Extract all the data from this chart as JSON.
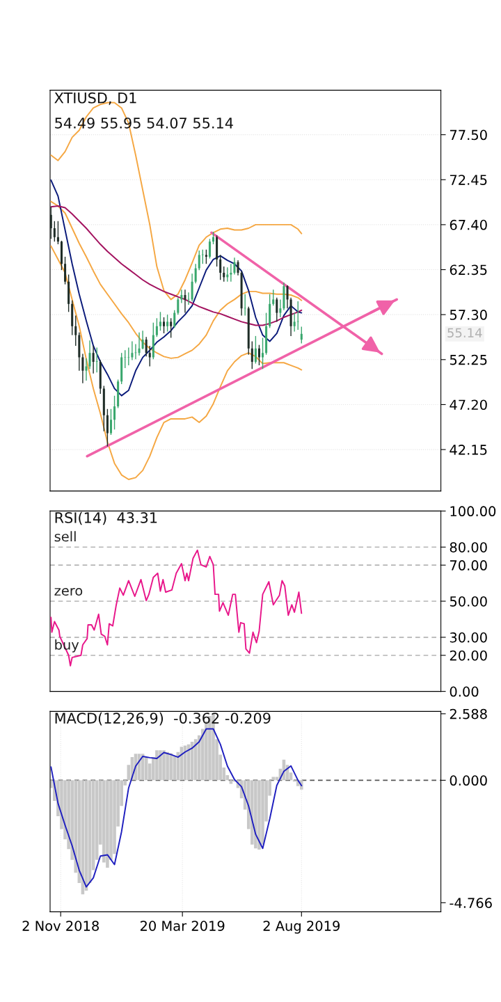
{
  "chart_data": [
    {
      "type": "candlestick",
      "title": "XTIUSD, D1",
      "subtitle": "54.49 55.95 54.07 55.14",
      "x": [
        "2018-10-22",
        "2018-10-26",
        "2018-10-30",
        "2018-11-03",
        "2018-11-07",
        "2018-11-11",
        "2018-11-15",
        "2018-11-19",
        "2018-11-23",
        "2018-11-27",
        "2018-12-01",
        "2018-12-05",
        "2018-12-09",
        "2018-12-13",
        "2018-12-17",
        "2018-12-21",
        "2018-12-25",
        "2018-12-29",
        "2019-01-02",
        "2019-01-06",
        "2019-01-10",
        "2019-01-14",
        "2019-01-18",
        "2019-01-22",
        "2019-01-26",
        "2019-01-30",
        "2019-02-03",
        "2019-02-07",
        "2019-02-11",
        "2019-02-15",
        "2019-02-19",
        "2019-02-23",
        "2019-02-27",
        "2019-03-03",
        "2019-03-07",
        "2019-03-11",
        "2019-03-15",
        "2019-03-19",
        "2019-03-23",
        "2019-03-27",
        "2019-03-31",
        "2019-04-04",
        "2019-04-08",
        "2019-04-12",
        "2019-04-16",
        "2019-04-20",
        "2019-04-24",
        "2019-04-28",
        "2019-05-02",
        "2019-05-06",
        "2019-05-10",
        "2019-05-14",
        "2019-05-18",
        "2019-05-22",
        "2019-05-26",
        "2019-05-30",
        "2019-06-03",
        "2019-06-07",
        "2019-06-11",
        "2019-06-15",
        "2019-06-19",
        "2019-06-23",
        "2019-06-27",
        "2019-07-01",
        "2019-07-05",
        "2019-07-09",
        "2019-07-13",
        "2019-07-17",
        "2019-07-21",
        "2019-07-25",
        "2019-07-29",
        "2019-08-02"
      ],
      "ohlc": [
        [
          68.5,
          69.4,
          65.8,
          67.0
        ],
        [
          67.0,
          67.8,
          65.5,
          66.0
        ],
        [
          66.0,
          67.8,
          65.2,
          65.5
        ],
        [
          65.5,
          65.6,
          62.3,
          63.0
        ],
        [
          63.0,
          63.8,
          60.7,
          61.0
        ],
        [
          61.0,
          61.8,
          57.6,
          58.5
        ],
        [
          58.5,
          58.9,
          55.0,
          56.0
        ],
        [
          56.0,
          57.2,
          53.8,
          55.0
        ],
        [
          55.0,
          55.3,
          51.0,
          52.5
        ],
        [
          52.5,
          52.9,
          49.6,
          51.0
        ],
        [
          51.0,
          52.4,
          49.9,
          51.5
        ],
        [
          51.5,
          54.4,
          51.2,
          53.0
        ],
        [
          53.0,
          53.8,
          50.7,
          52.0
        ],
        [
          52.0,
          53.6,
          50.8,
          52.0
        ],
        [
          52.0,
          52.2,
          48.4,
          49.0
        ],
        [
          49.0,
          49.3,
          44.2,
          46.0
        ],
        [
          46.0,
          46.7,
          42.5,
          44.0
        ],
        [
          44.0,
          46.7,
          43.8,
          45.5
        ],
        [
          45.5,
          48.2,
          44.4,
          47.0
        ],
        [
          47.0,
          50.0,
          46.8,
          49.8
        ],
        [
          49.8,
          53.0,
          49.5,
          52.5
        ],
        [
          52.5,
          53.3,
          51.3,
          52.5
        ],
        [
          52.5,
          53.6,
          51.6,
          52.5
        ],
        [
          52.5,
          54.3,
          52.2,
          53.0
        ],
        [
          53.0,
          54.0,
          52.3,
          53.0
        ],
        [
          53.0,
          55.3,
          52.7,
          53.5
        ],
        [
          53.5,
          55.5,
          53.4,
          54.5
        ],
        [
          54.5,
          54.8,
          52.6,
          53.0
        ],
        [
          53.0,
          53.8,
          51.5,
          52.5
        ],
        [
          52.5,
          56.4,
          52.3,
          55.0
        ],
        [
          55.0,
          56.9,
          54.8,
          56.0
        ],
        [
          56.0,
          57.6,
          55.5,
          56.5
        ],
        [
          56.5,
          57.0,
          55.2,
          56.0
        ],
        [
          56.0,
          57.3,
          55.4,
          56.5
        ],
        [
          56.5,
          56.9,
          54.7,
          56.0
        ],
        [
          56.0,
          57.8,
          55.8,
          57.5
        ],
        [
          57.5,
          59.2,
          57.3,
          59.0
        ],
        [
          59.0,
          60.1,
          58.6,
          59.5
        ],
        [
          59.5,
          60.1,
          57.5,
          59.0
        ],
        [
          59.0,
          59.8,
          58.4,
          59.0
        ],
        [
          59.0,
          61.9,
          58.8,
          61.0
        ],
        [
          61.0,
          63.0,
          60.8,
          62.5
        ],
        [
          62.5,
          64.5,
          62.3,
          64.0
        ],
        [
          64.0,
          64.6,
          63.0,
          64.0
        ],
        [
          64.0,
          64.6,
          63.0,
          63.8
        ],
        [
          63.8,
          65.8,
          63.6,
          65.5
        ],
        [
          65.5,
          66.6,
          65.2,
          66.0
        ],
        [
          66.0,
          66.2,
          62.7,
          63.5
        ],
        [
          63.5,
          64.0,
          61.2,
          62.0
        ],
        [
          62.0,
          62.7,
          61.0,
          61.5
        ],
        [
          61.5,
          62.6,
          61.0,
          61.8
        ],
        [
          61.8,
          63.0,
          61.0,
          62.0
        ],
        [
          62.0,
          63.7,
          61.8,
          63.2
        ],
        [
          63.2,
          63.4,
          61.7,
          62.0
        ],
        [
          62.0,
          62.2,
          57.2,
          58.0
        ],
        [
          58.0,
          59.6,
          57.2,
          58.0
        ],
        [
          58.0,
          58.2,
          52.8,
          53.5
        ],
        [
          53.5,
          54.3,
          51.2,
          52.0
        ],
        [
          52.0,
          54.9,
          51.8,
          53.5
        ],
        [
          53.5,
          53.9,
          51.6,
          52.5
        ],
        [
          52.5,
          54.7,
          51.2,
          53.0
        ],
        [
          53.0,
          57.5,
          52.8,
          56.0
        ],
        [
          56.0,
          59.6,
          55.8,
          58.5
        ],
        [
          58.5,
          60.1,
          58.3,
          59.0
        ],
        [
          59.0,
          59.2,
          56.5,
          57.5
        ],
        [
          57.5,
          59.0,
          57.0,
          58.0
        ],
        [
          58.0,
          60.9,
          57.8,
          60.5
        ],
        [
          60.5,
          60.6,
          58.0,
          59.0
        ],
        [
          59.0,
          59.2,
          54.9,
          56.0
        ],
        [
          56.0,
          57.5,
          55.4,
          56.5
        ],
        [
          56.5,
          58.8,
          55.6,
          56.5
        ],
        [
          54.49,
          55.95,
          54.07,
          55.14
        ]
      ],
      "colors": [
        "#1f2d27",
        "#1f2d27",
        "#1f2d27",
        "#1f2d27",
        "#1f2d27",
        "#1f2d27",
        "#1f2d27",
        "#1f2d27",
        "#1f2d27",
        "#1f2d27",
        "#3aa76d",
        "#3aa76d",
        "#1f2d27",
        "#3aa76d",
        "#1f2d27",
        "#1f2d27",
        "#1f2d27",
        "#3aa76d",
        "#3aa76d",
        "#3aa76d",
        "#3aa76d",
        "#3aa76d",
        "#3aa76d",
        "#3aa76d",
        "#3aa76d",
        "#3aa76d",
        "#3aa76d",
        "#1f2d27",
        "#1f2d27",
        "#3aa76d",
        "#3aa76d",
        "#3aa76d",
        "#1f2d27",
        "#3aa76d",
        "#1f2d27",
        "#3aa76d",
        "#3aa76d",
        "#3aa76d",
        "#1f2d27",
        "#3aa76d",
        "#3aa76d",
        "#3aa76d",
        "#3aa76d",
        "#3aa76d",
        "#1f2d27",
        "#3aa76d",
        "#3aa76d",
        "#1f2d27",
        "#1f2d27",
        "#1f2d27",
        "#3aa76d",
        "#3aa76d",
        "#3aa76d",
        "#1f2d27",
        "#1f2d27",
        "#3aa76d",
        "#1f2d27",
        "#1f2d27",
        "#3aa76d",
        "#1f2d27",
        "#3aa76d",
        "#3aa76d",
        "#3aa76d",
        "#3aa76d",
        "#1f2d27",
        "#3aa76d",
        "#3aa76d",
        "#1f2d27",
        "#1f2d27",
        "#3aa76d",
        "#3aa76d",
        "#3aa76d"
      ],
      "series": [
        {
          "type": "line",
          "color": "#f5a742",
          "x": [
            "2018-10-22",
            "2018-10-30",
            "2018-11-07",
            "2018-11-15",
            "2018-11-23",
            "2018-12-01",
            "2018-12-09",
            "2018-12-17",
            "2018-12-25",
            "2019-01-02",
            "2019-01-10",
            "2019-01-18",
            "2019-01-26",
            "2019-02-03",
            "2019-02-11",
            "2019-02-19",
            "2019-02-27",
            "2019-03-07",
            "2019-03-15",
            "2019-03-23",
            "2019-03-31",
            "2019-04-08",
            "2019-04-16",
            "2019-04-24",
            "2019-05-02",
            "2019-05-10",
            "2019-05-18",
            "2019-05-26",
            "2019-06-03",
            "2019-06-11",
            "2019-06-19",
            "2019-06-27",
            "2019-07-05",
            "2019-07-13",
            "2019-07-21",
            "2019-07-29",
            "2019-08-02"
          ],
          "values": [
            75.2,
            74.6,
            75.6,
            77.2,
            78.0,
            79.5,
            80.5,
            80.9,
            81.1,
            81.1,
            80.5,
            78.8,
            75.2,
            71.3,
            67.4,
            62.7,
            60.0,
            59.0,
            59.6,
            61.2,
            63.1,
            65.1,
            66.0,
            66.5,
            66.9,
            67.0,
            66.8,
            66.8,
            67.0,
            67.4,
            67.4,
            67.4,
            67.4,
            67.4,
            67.4,
            66.9,
            66.4
          ]
        },
        {
          "type": "line",
          "color": "#f5a742",
          "x": [
            "2018-10-22",
            "2018-10-30",
            "2018-11-07",
            "2018-11-15",
            "2018-11-23",
            "2018-12-01",
            "2018-12-09",
            "2018-12-17",
            "2018-12-25",
            "2019-01-02",
            "2019-01-10",
            "2019-01-18",
            "2019-01-26",
            "2019-02-03",
            "2019-02-11",
            "2019-02-19",
            "2019-02-27",
            "2019-03-07",
            "2019-03-15",
            "2019-03-23",
            "2019-03-31",
            "2019-04-08",
            "2019-04-16",
            "2019-04-24",
            "2019-05-02",
            "2019-05-10",
            "2019-05-18",
            "2019-05-26",
            "2019-06-03",
            "2019-06-11",
            "2019-06-19",
            "2019-06-27",
            "2019-07-05",
            "2019-07-13",
            "2019-07-21",
            "2019-07-29",
            "2019-08-02"
          ],
          "values": [
            70.0,
            69.5,
            68.7,
            67.0,
            65.3,
            63.8,
            62.2,
            60.7,
            59.6,
            58.5,
            57.4,
            56.4,
            55.2,
            54.2,
            53.5,
            53.0,
            52.6,
            52.4,
            52.5,
            52.9,
            53.3,
            54.0,
            55.0,
            56.6,
            57.8,
            58.5,
            59.0,
            59.6,
            59.9,
            59.9,
            59.7,
            59.7,
            59.6,
            59.6,
            59.5,
            59.2,
            58.9
          ]
        },
        {
          "type": "line",
          "color": "#f5a742",
          "x": [
            "2018-10-22",
            "2018-10-30",
            "2018-11-07",
            "2018-11-15",
            "2018-11-23",
            "2018-12-01",
            "2018-12-09",
            "2018-12-17",
            "2018-12-25",
            "2019-01-02",
            "2019-01-10",
            "2019-01-18",
            "2019-01-26",
            "2019-02-03",
            "2019-02-11",
            "2019-02-19",
            "2019-02-27",
            "2019-03-07",
            "2019-03-15",
            "2019-03-23",
            "2019-03-31",
            "2019-04-08",
            "2019-04-16",
            "2019-04-24",
            "2019-05-02",
            "2019-05-10",
            "2019-05-18",
            "2019-05-26",
            "2019-06-03",
            "2019-06-11",
            "2019-06-19",
            "2019-06-27",
            "2019-07-05",
            "2019-07-13",
            "2019-07-21",
            "2019-07-29",
            "2019-08-02"
          ],
          "values": [
            65.0,
            63.5,
            62.0,
            59.0,
            56.0,
            52.3,
            49.0,
            46.2,
            43.0,
            40.6,
            39.3,
            38.8,
            39.0,
            39.8,
            41.4,
            43.5,
            45.2,
            45.6,
            45.6,
            45.6,
            45.8,
            45.2,
            45.9,
            47.3,
            49.2,
            51.0,
            52.0,
            52.7,
            53.0,
            52.6,
            51.8,
            51.9,
            51.9,
            51.9,
            51.6,
            51.3,
            51.1
          ]
        },
        {
          "type": "line",
          "color": "#0a1a7a",
          "x": [
            "2018-10-22",
            "2018-10-30",
            "2018-11-07",
            "2018-11-15",
            "2018-11-23",
            "2018-12-01",
            "2018-12-09",
            "2018-12-17",
            "2018-12-25",
            "2019-01-02",
            "2019-01-10",
            "2019-01-18",
            "2019-01-26",
            "2019-02-03",
            "2019-02-11",
            "2019-02-19",
            "2019-02-27",
            "2019-03-07",
            "2019-03-15",
            "2019-03-23",
            "2019-03-31",
            "2019-04-08",
            "2019-04-16",
            "2019-04-24",
            "2019-05-02",
            "2019-05-10",
            "2019-05-18",
            "2019-05-26",
            "2019-06-03",
            "2019-06-11",
            "2019-06-19",
            "2019-06-27",
            "2019-07-05",
            "2019-07-13",
            "2019-07-21",
            "2019-07-29",
            "2019-08-02"
          ],
          "values": [
            72.4,
            70.6,
            66.8,
            63.0,
            59.6,
            56.6,
            53.8,
            52.0,
            50.6,
            49.0,
            48.2,
            48.8,
            51.0,
            52.5,
            53.3,
            54.2,
            54.8,
            55.5,
            56.5,
            57.3,
            58.3,
            60.3,
            62.3,
            63.5,
            63.9,
            63.4,
            63.0,
            62.2,
            60.0,
            57.0,
            55.0,
            54.3,
            55.2,
            57.2,
            58.3,
            57.6,
            57.5
          ]
        },
        {
          "type": "line",
          "color": "#a3125f",
          "x": [
            "2018-10-22",
            "2018-10-30",
            "2018-11-07",
            "2018-11-15",
            "2018-11-23",
            "2018-12-01",
            "2018-12-09",
            "2018-12-17",
            "2018-12-25",
            "2019-01-02",
            "2019-01-10",
            "2019-01-18",
            "2019-01-26",
            "2019-02-03",
            "2019-02-11",
            "2019-02-19",
            "2019-02-27",
            "2019-03-07",
            "2019-03-15",
            "2019-03-23",
            "2019-03-31",
            "2019-04-08",
            "2019-04-16",
            "2019-04-24",
            "2019-05-02",
            "2019-05-10",
            "2019-05-18",
            "2019-05-26",
            "2019-06-03",
            "2019-06-11",
            "2019-06-19",
            "2019-06-27",
            "2019-07-05",
            "2019-07-13",
            "2019-07-21",
            "2019-07-29",
            "2019-08-02"
          ],
          "values": [
            69.4,
            69.5,
            69.3,
            68.6,
            67.8,
            67.0,
            66.1,
            65.2,
            64.4,
            63.7,
            63.0,
            62.4,
            61.8,
            61.2,
            60.7,
            60.3,
            59.9,
            59.6,
            59.3,
            59.0,
            58.6,
            58.2,
            57.9,
            57.6,
            57.4,
            57.1,
            56.8,
            56.5,
            56.3,
            56.1,
            56.1,
            56.3,
            56.6,
            57.0,
            57.3,
            57.6,
            57.8
          ]
        },
        {
          "type": "line",
          "color": "#f062a8",
          "x": [
            "2018-12-02",
            "2019-11-18"
          ],
          "values": [
            41.4,
            59.0
          ]
        },
        {
          "type": "line",
          "color": "#f062a8",
          "x": [
            "2019-04-22",
            "2019-11-01"
          ],
          "values": [
            66.5,
            52.9
          ]
        }
      ],
      "annotations": [
        "55.14"
      ],
      "xlim": [
        "2018-10-21",
        "2020-01-07"
      ],
      "ylim": [
        37.5,
        82.5
      ],
      "yticks": [
        {
          "value": 42.15,
          "label": "42.15"
        },
        {
          "value": 47.2,
          "label": "47.20"
        },
        {
          "value": 52.25,
          "label": "52.25"
        },
        {
          "value": 57.3,
          "label": "57.30"
        },
        {
          "value": 62.35,
          "label": "62.35"
        },
        {
          "value": 67.4,
          "label": "67.40"
        },
        {
          "value": 72.45,
          "label": "72.45"
        },
        {
          "value": 77.5,
          "label": "77.50"
        }
      ],
      "tick_labels": "y",
      "grid": true
    },
    {
      "type": "line",
      "title": "RSI(14)  43.31",
      "series": [
        {
          "color": "#e8168a",
          "x": [
            "2018-10-22",
            "2018-10-23",
            "2018-10-26",
            "2018-10-31",
            "2018-11-01",
            "2018-11-11",
            "2018-11-13",
            "2018-11-15",
            "2018-11-25",
            "2018-11-27",
            "2018-12-02",
            "2018-12-03",
            "2018-12-07",
            "2018-12-10",
            "2018-12-15",
            "2018-12-18",
            "2018-12-22",
            "2018-12-25",
            "2018-12-27",
            "2018-12-31",
            "2019-01-04",
            "2019-01-08",
            "2019-01-12",
            "2019-01-18",
            "2019-01-25",
            "2019-02-01",
            "2019-02-07",
            "2019-02-10",
            "2019-02-15",
            "2019-02-20",
            "2019-02-23",
            "2019-02-26",
            "2019-03-01",
            "2019-03-08",
            "2019-03-13",
            "2019-03-19",
            "2019-03-23",
            "2019-03-25",
            "2019-03-27",
            "2019-04-01",
            "2019-04-06",
            "2019-04-10",
            "2019-04-16",
            "2019-04-20",
            "2019-04-24",
            "2019-04-26",
            "2019-04-30",
            "2019-05-01",
            "2019-05-05",
            "2019-05-08",
            "2019-05-11",
            "2019-05-16",
            "2019-05-19",
            "2019-05-23",
            "2019-05-25",
            "2019-05-29",
            "2019-05-31",
            "2019-06-04",
            "2019-06-08",
            "2019-06-12",
            "2019-06-15",
            "2019-06-19",
            "2019-06-26",
            "2019-07-01",
            "2019-07-04",
            "2019-07-08",
            "2019-07-11",
            "2019-07-14",
            "2019-07-18",
            "2019-07-22",
            "2019-07-25",
            "2019-07-30",
            "2019-08-02"
          ],
          "values": [
            41.0,
            32.8,
            38.7,
            34.0,
            30.5,
            20.0,
            14.2,
            18.8,
            20.0,
            25.8,
            29.3,
            36.9,
            36.9,
            34.0,
            42.8,
            31.7,
            30.5,
            25.8,
            37.5,
            36.3,
            48.0,
            57.3,
            53.3,
            61.4,
            52.7,
            62.0,
            50.3,
            53.8,
            63.2,
            65.5,
            55.6,
            62.0,
            55.0,
            56.2,
            65.5,
            70.8,
            61.4,
            65.5,
            61.4,
            73.7,
            78.3,
            70.2,
            69.0,
            74.8,
            70.2,
            53.8,
            53.8,
            44.5,
            49.2,
            45.7,
            42.2,
            53.8,
            53.8,
            32.8,
            38.1,
            37.5,
            23.5,
            21.2,
            32.8,
            27.0,
            33.4,
            53.8,
            60.8,
            48.0,
            50.3,
            53.3,
            61.4,
            58.5,
            42.2,
            48.0,
            43.9,
            55.0,
            43.31
          ]
        }
      ],
      "ref_lines": [
        {
          "axis": "y",
          "value": 80,
          "label": "sell",
          "color": "#b4b4b4",
          "line_style": "dashed"
        },
        {
          "axis": "y",
          "value": 70,
          "color": "#b4b4b4",
          "line_style": "dashed"
        },
        {
          "axis": "y",
          "value": 50,
          "label": "zero",
          "color": "#b4b4b4",
          "line_style": "dashed"
        },
        {
          "axis": "y",
          "value": 30,
          "color": "#b4b4b4",
          "line_style": "dashed"
        },
        {
          "axis": "y",
          "value": 20,
          "label": "buy",
          "color": "#b4b4b4",
          "line_style": "dashed"
        }
      ],
      "xlim": [
        "2018-10-21",
        "2020-01-07"
      ],
      "ylim": [
        0,
        100
      ],
      "yticks": [
        {
          "value": 0,
          "label": "0.00"
        },
        {
          "value": 20,
          "label": "20.00"
        },
        {
          "value": 30,
          "label": "30.00"
        },
        {
          "value": 50,
          "label": "50.00"
        },
        {
          "value": 70,
          "label": "70.00"
        },
        {
          "value": 80,
          "label": "80.00"
        },
        {
          "value": 100,
          "label": "100.00"
        }
      ],
      "tick_labels": "y"
    },
    {
      "type": "bar",
      "title": "MACD(12,26,9)  -0.362 -0.209",
      "x": [
        "2018-10-22",
        "2018-10-26",
        "2018-10-30",
        "2018-11-03",
        "2018-11-07",
        "2018-11-11",
        "2018-11-15",
        "2018-11-19",
        "2018-11-23",
        "2018-11-27",
        "2018-12-01",
        "2018-12-05",
        "2018-12-09",
        "2018-12-13",
        "2018-12-17",
        "2018-12-21",
        "2018-12-25",
        "2018-12-29",
        "2019-01-02",
        "2019-01-06",
        "2019-01-10",
        "2019-01-14",
        "2019-01-18",
        "2019-01-22",
        "2019-01-26",
        "2019-01-30",
        "2019-02-03",
        "2019-02-07",
        "2019-02-11",
        "2019-02-15",
        "2019-02-19",
        "2019-02-23",
        "2019-02-27",
        "2019-03-03",
        "2019-03-07",
        "2019-03-11",
        "2019-03-15",
        "2019-03-19",
        "2019-03-23",
        "2019-03-27",
        "2019-03-31",
        "2019-04-04",
        "2019-04-08",
        "2019-04-12",
        "2019-04-16",
        "2019-04-20",
        "2019-04-24",
        "2019-04-28",
        "2019-05-02",
        "2019-05-06",
        "2019-05-10",
        "2019-05-14",
        "2019-05-18",
        "2019-05-22",
        "2019-05-26",
        "2019-05-30",
        "2019-06-03",
        "2019-06-07",
        "2019-06-11",
        "2019-06-15",
        "2019-06-19",
        "2019-06-23",
        "2019-06-27",
        "2019-07-01",
        "2019-07-05",
        "2019-07-09",
        "2019-07-13",
        "2019-07-17",
        "2019-07-21",
        "2019-07-25",
        "2019-07-29",
        "2019-08-02"
      ],
      "series": [
        {
          "color": "#c8c8c8",
          "values": [
            -0.3,
            -0.8,
            -1.4,
            -1.9,
            -2.3,
            -2.68,
            -3.1,
            -3.6,
            -4.0,
            -4.44,
            -4.3,
            -4.0,
            -3.5,
            -3.1,
            -2.5,
            -3.2,
            -3.4,
            -3.1,
            -2.87,
            -1.8,
            -1.0,
            -0.2,
            0.6,
            0.9,
            1.03,
            1.03,
            1.03,
            0.9,
            0.65,
            0.9,
            1.17,
            1.17,
            1.17,
            1.1,
            1.05,
            0.95,
            1.1,
            1.3,
            1.35,
            1.4,
            1.5,
            1.6,
            1.75,
            2.0,
            2.3,
            2.5,
            2.588,
            1.6,
            1.0,
            0.5,
            0.2,
            -0.14,
            -0.05,
            -0.3,
            -0.7,
            -1.14,
            -1.9,
            -2.5,
            -2.65,
            -2.7,
            -2.5,
            -1.6,
            -0.6,
            0.13,
            0.13,
            0.45,
            0.8,
            0.6,
            0.3,
            -0.05,
            -0.23,
            -0.362
          ]
        },
        {
          "type": "line",
          "color": "#1f1fbf",
          "x": [
            "2018-10-22",
            "2018-10-30",
            "2018-11-07",
            "2018-11-15",
            "2018-11-23",
            "2018-12-01",
            "2018-12-09",
            "2018-12-17",
            "2018-12-25",
            "2019-01-02",
            "2019-01-10",
            "2019-01-18",
            "2019-01-26",
            "2019-02-03",
            "2019-02-11",
            "2019-02-19",
            "2019-02-27",
            "2019-03-07",
            "2019-03-15",
            "2019-03-23",
            "2019-03-31",
            "2019-04-08",
            "2019-04-16",
            "2019-04-24",
            "2019-05-02",
            "2019-05-10",
            "2019-05-18",
            "2019-05-26",
            "2019-06-03",
            "2019-06-11",
            "2019-06-19",
            "2019-06-27",
            "2019-07-05",
            "2019-07-13",
            "2019-07-21",
            "2019-07-29",
            "2019-08-02"
          ],
          "values": [
            0.52,
            -0.9,
            -1.75,
            -2.55,
            -3.5,
            -4.15,
            -3.8,
            -2.95,
            -2.9,
            -3.28,
            -2.0,
            -0.3,
            0.55,
            0.93,
            0.88,
            0.85,
            1.08,
            1.0,
            0.9,
            1.1,
            1.25,
            1.5,
            2.0,
            2.0,
            1.4,
            0.55,
            0.03,
            -0.25,
            -1.0,
            -2.1,
            -2.65,
            -1.5,
            -0.2,
            0.35,
            0.56,
            0.0,
            -0.209
          ]
        }
      ],
      "ref_lines": [
        {
          "axis": "y",
          "value": 0,
          "color": "#555555",
          "line_style": "dashed"
        }
      ],
      "xlim": [
        "2018-10-21",
        "2020-01-07"
      ],
      "xticks": [
        {
          "value": "2018-11-02",
          "label": "2 Nov 2018"
        },
        {
          "value": "2019-03-20",
          "label": "20 Mar 2019"
        },
        {
          "value": "2019-08-02",
          "label": "2 Aug 2019"
        }
      ],
      "ylim": [
        -5.12,
        2.68
      ],
      "yticks": [
        {
          "value": -4.766,
          "label": "-4.766"
        },
        {
          "value": 0,
          "label": "0.000"
        },
        {
          "value": 2.588,
          "label": "2.588"
        }
      ],
      "grid": "x"
    }
  ]
}
